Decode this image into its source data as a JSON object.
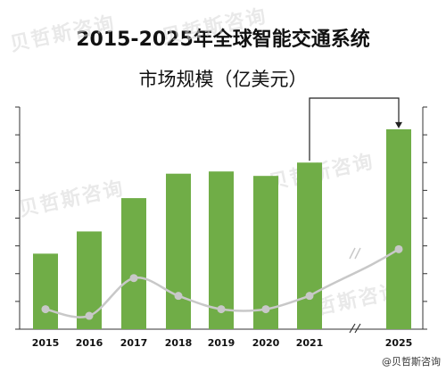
{
  "title_line1": "2015-2025年全球智能交通系统",
  "title_line2": "市场规模（亿美元）",
  "watermark_text": "贝哲斯咨询",
  "credit": "@贝哲斯咨询",
  "colors": {
    "bar": "#70ad47",
    "line": "#c8c8c8",
    "axis": "#333333"
  },
  "chart_data": {
    "type": "bar",
    "title": "2015-2025年全球智能交通系统 市场规模（亿美元）",
    "categories": [
      "2015",
      "2016",
      "2017",
      "2018",
      "2019",
      "2020",
      "2021",
      "2025"
    ],
    "values": [
      34,
      44,
      59,
      70,
      71,
      69,
      75,
      90
    ],
    "ylim": [
      0,
      100
    ],
    "yticks": 8,
    "grid": false,
    "axis_break_between": [
      "2021",
      "2025"
    ],
    "overlay_series": {
      "type": "line",
      "smooth": true,
      "values": [
        9,
        6,
        23,
        15,
        9,
        9,
        15,
        36
      ]
    }
  }
}
